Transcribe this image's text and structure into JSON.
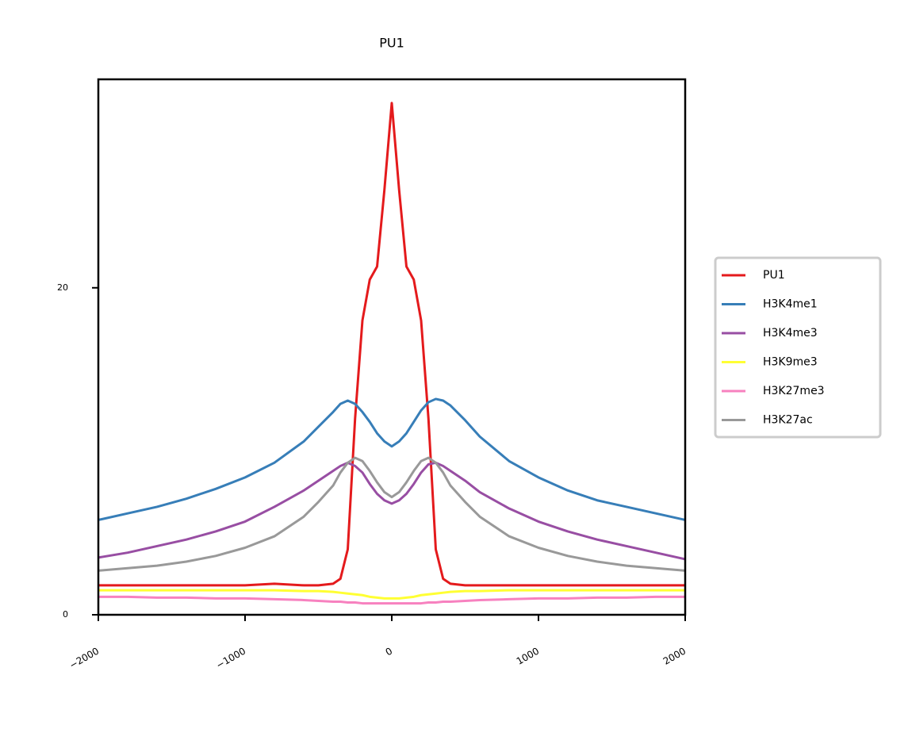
{
  "chart_data": {
    "type": "line",
    "title": "PU1",
    "x": [
      -2000,
      -1800,
      -1600,
      -1400,
      -1200,
      -1000,
      -800,
      -600,
      -500,
      -400,
      -350,
      -300,
      -250,
      -200,
      -150,
      -100,
      -50,
      0,
      50,
      100,
      150,
      200,
      250,
      300,
      350,
      400,
      500,
      600,
      800,
      1000,
      1200,
      1400,
      1600,
      1800,
      2000
    ],
    "series": [
      {
        "name": "PU1",
        "color": "#e41a1c",
        "values": [
          1.8,
          1.8,
          1.8,
          1.8,
          1.8,
          1.8,
          1.9,
          1.8,
          1.8,
          1.9,
          2.2,
          4.0,
          12,
          18,
          20.5,
          21.3,
          26,
          31.3,
          26,
          21.3,
          20.5,
          18,
          12,
          4.0,
          2.2,
          1.9,
          1.8,
          1.8,
          1.8,
          1.8,
          1.8,
          1.8,
          1.8,
          1.8,
          1.8
        ]
      },
      {
        "name": "H3K4me1",
        "color": "#377eb8",
        "values": [
          5.8,
          6.2,
          6.6,
          7.1,
          7.7,
          8.4,
          9.3,
          10.6,
          11.5,
          12.4,
          12.9,
          13.1,
          12.9,
          12.4,
          11.8,
          11.1,
          10.6,
          10.3,
          10.6,
          11.1,
          11.8,
          12.5,
          13.0,
          13.2,
          13.1,
          12.8,
          11.9,
          10.9,
          9.4,
          8.4,
          7.6,
          7.0,
          6.6,
          6.2,
          5.8
        ]
      },
      {
        "name": "H3K4me3",
        "color": "#984ea3",
        "values": [
          3.5,
          3.8,
          4.2,
          4.6,
          5.1,
          5.7,
          6.6,
          7.6,
          8.2,
          8.8,
          9.1,
          9.3,
          9.1,
          8.7,
          8.0,
          7.4,
          7.0,
          6.8,
          7.0,
          7.4,
          8.0,
          8.7,
          9.2,
          9.3,
          9.1,
          8.8,
          8.2,
          7.5,
          6.5,
          5.7,
          5.1,
          4.6,
          4.2,
          3.8,
          3.4
        ]
      },
      {
        "name": "H3K9me3",
        "color": "#ffff33",
        "values": [
          1.5,
          1.5,
          1.5,
          1.5,
          1.5,
          1.5,
          1.5,
          1.45,
          1.45,
          1.4,
          1.35,
          1.3,
          1.25,
          1.2,
          1.1,
          1.05,
          1.0,
          1.0,
          1.0,
          1.05,
          1.1,
          1.2,
          1.25,
          1.3,
          1.35,
          1.4,
          1.45,
          1.45,
          1.5,
          1.5,
          1.5,
          1.5,
          1.5,
          1.5,
          1.5
        ]
      },
      {
        "name": "H3K27me3",
        "color": "#f781bf",
        "values": [
          1.1,
          1.1,
          1.05,
          1.05,
          1.0,
          1.0,
          0.95,
          0.9,
          0.85,
          0.8,
          0.8,
          0.75,
          0.75,
          0.7,
          0.7,
          0.7,
          0.7,
          0.7,
          0.7,
          0.7,
          0.7,
          0.7,
          0.75,
          0.75,
          0.8,
          0.8,
          0.85,
          0.9,
          0.95,
          1.0,
          1.0,
          1.05,
          1.05,
          1.1,
          1.1
        ]
      },
      {
        "name": "H3K27ac",
        "color": "#999999",
        "values": [
          2.7,
          2.85,
          3.0,
          3.25,
          3.6,
          4.1,
          4.8,
          6.0,
          6.9,
          7.9,
          8.7,
          9.3,
          9.6,
          9.4,
          8.8,
          8.1,
          7.5,
          7.2,
          7.5,
          8.1,
          8.8,
          9.4,
          9.6,
          9.3,
          8.7,
          7.9,
          6.9,
          6.0,
          4.8,
          4.1,
          3.6,
          3.25,
          3.0,
          2.85,
          2.7
        ]
      }
    ],
    "xlim": [
      -2000,
      2000
    ],
    "xticks": [
      {
        "value": -2000,
        "label": "−2000"
      },
      {
        "value": -1000,
        "label": "−1000"
      },
      0,
      1000,
      2000
    ],
    "ylim": [
      0,
      32.75
    ],
    "yticks": [
      0,
      20
    ],
    "grid": false,
    "legend": "right"
  }
}
